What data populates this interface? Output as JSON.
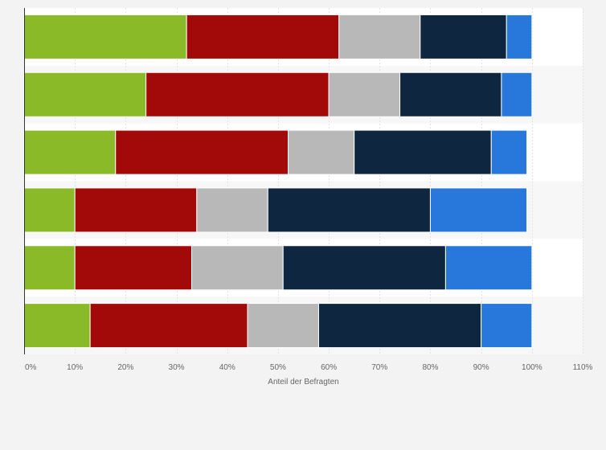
{
  "chart_data": {
    "type": "bar",
    "orientation": "horizontal",
    "stacked": true,
    "title": "",
    "xlabel": "Anteil der Befragten",
    "ylabel": "",
    "xlim": [
      0,
      110
    ],
    "x_ticks": [
      "0%",
      "10%",
      "20%",
      "30%",
      "40%",
      "50%",
      "60%",
      "70%",
      "80%",
      "90%",
      "100%",
      "110%"
    ],
    "categories": [
      "",
      "",
      "",
      "",
      "",
      ""
    ],
    "series": [
      {
        "color": "#8aba28",
        "values": [
          32,
          24,
          18,
          10,
          10,
          13
        ]
      },
      {
        "color": "#a20a0a",
        "values": [
          30,
          36,
          34,
          24,
          23,
          31
        ]
      },
      {
        "color": "#b8b8b8",
        "values": [
          16,
          14,
          13,
          14,
          18,
          14
        ]
      },
      {
        "color": "#0f2640",
        "values": [
          17,
          20,
          27,
          32,
          32,
          32
        ]
      },
      {
        "color": "#2878dc",
        "values": [
          5,
          6,
          7,
          19,
          17,
          10
        ]
      }
    ],
    "grid": true,
    "legend": "none"
  }
}
